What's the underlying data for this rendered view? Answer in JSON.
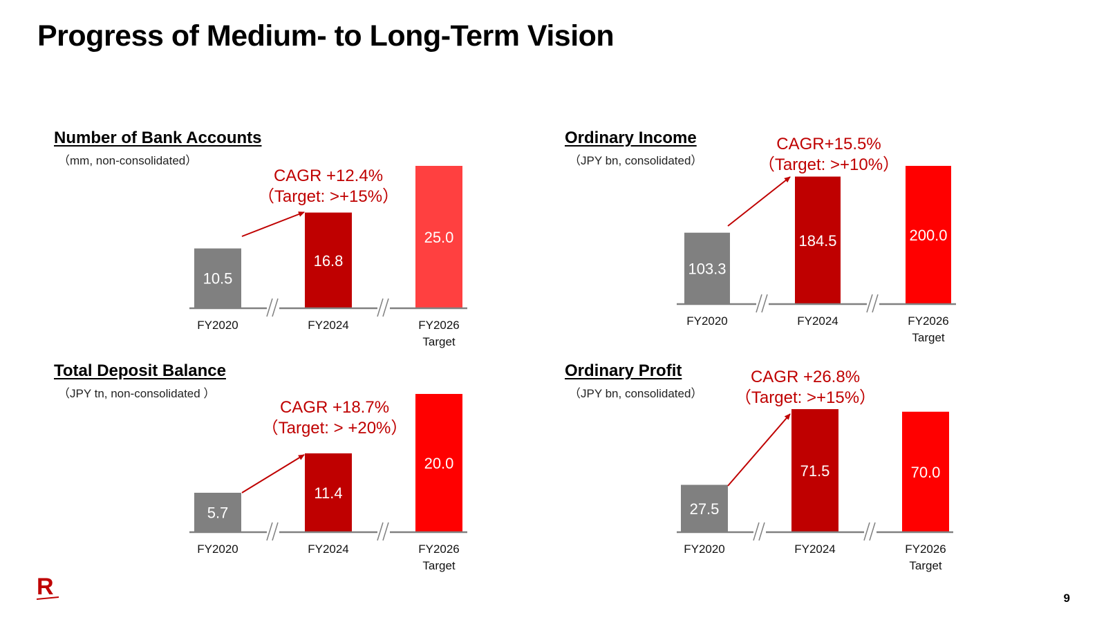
{
  "page": {
    "title": "Progress of Medium- to Long-Term Vision",
    "page_number": "9",
    "logo_letter": "R",
    "logo_icon": "rakuten-logo-icon"
  },
  "colors": {
    "fy2020": "#808080",
    "fy2024": "#BF0000",
    "target_light": "#FF4040",
    "target": "#FF0000",
    "annotation": "#BF0000",
    "axis": "#808080"
  },
  "chart_data": [
    {
      "id": "bank-accounts",
      "type": "bar",
      "title": "Number of Bank Accounts",
      "unit": "（mm, non-consolidated）",
      "categories": [
        [
          "FY2020"
        ],
        [
          "FY2024"
        ],
        [
          "FY2026",
          "Target"
        ]
      ],
      "values": [
        10.5,
        16.8,
        25.0
      ],
      "value_labels": [
        "10.5",
        "16.8",
        "25.0"
      ],
      "bar_colors": [
        "#808080",
        "#BF0000",
        "#FF4040"
      ],
      "ylim": [
        0,
        25
      ],
      "axis_break": true,
      "annotation": {
        "lines": [
          "CAGR +12.4%",
          "（Target: >+15%）"
        ],
        "arrow_from": 0,
        "arrow_to": 1
      }
    },
    {
      "id": "ordinary-income",
      "type": "bar",
      "title": "Ordinary Income",
      "unit": "（JPY bn, consolidated）",
      "categories": [
        [
          "FY2020"
        ],
        [
          "FY2024"
        ],
        [
          "FY2026",
          "Target"
        ]
      ],
      "values": [
        103.3,
        184.5,
        200.0
      ],
      "value_labels": [
        "103.3",
        "184.5",
        "200.0"
      ],
      "bar_colors": [
        "#808080",
        "#BF0000",
        "#FF0000"
      ],
      "ylim": [
        0,
        200
      ],
      "axis_break": true,
      "annotation": {
        "lines": [
          "CAGR+15.5%",
          "（Target:  >+10%）"
        ],
        "arrow_from": 0,
        "arrow_to": 1
      }
    },
    {
      "id": "deposit-balance",
      "type": "bar",
      "title": "Total Deposit Balance",
      "unit": "（JPY tn, non-consolidated ）",
      "categories": [
        [
          "FY2020"
        ],
        [
          "FY2024"
        ],
        [
          "FY2026",
          "Target"
        ]
      ],
      "values": [
        5.7,
        11.4,
        20.0
      ],
      "value_labels": [
        "5.7",
        "11.4",
        "20.0"
      ],
      "bar_colors": [
        "#808080",
        "#BF0000",
        "#FF0000"
      ],
      "ylim": [
        0,
        20
      ],
      "axis_break": true,
      "annotation": {
        "lines": [
          "CAGR +18.7%",
          "（Target: > +20%）"
        ],
        "arrow_from": 0,
        "arrow_to": 1
      }
    },
    {
      "id": "ordinary-profit",
      "type": "bar",
      "title": "Ordinary Profit",
      "unit": "（JPY bn, consolidated）",
      "categories": [
        [
          "FY2020"
        ],
        [
          "FY2024"
        ],
        [
          "FY2026",
          "Target"
        ]
      ],
      "values": [
        27.5,
        71.5,
        70.0
      ],
      "value_labels": [
        "27.5",
        "71.5",
        "70.0"
      ],
      "bar_colors": [
        "#808080",
        "#BF0000",
        "#FF0000"
      ],
      "ylim": [
        0,
        71.5
      ],
      "axis_break": true,
      "annotation": {
        "lines": [
          "CAGR +26.8%",
          "（Target: >+15%）"
        ],
        "arrow_from": 0,
        "arrow_to": 1
      }
    }
  ]
}
